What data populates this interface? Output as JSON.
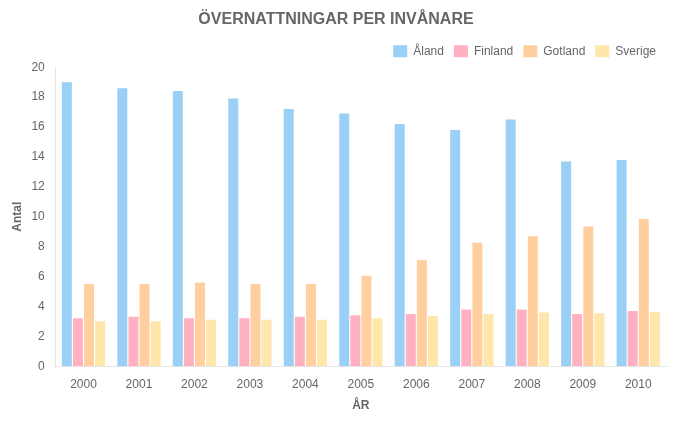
{
  "chart_data": {
    "type": "bar",
    "title": "ÖVERNATTNINGAR PER INVÅNARE",
    "xlabel": "ÅR",
    "ylabel": "Antal",
    "categories": [
      "2000",
      "2001",
      "2002",
      "2003",
      "2004",
      "2005",
      "2006",
      "2007",
      "2008",
      "2009",
      "2010"
    ],
    "series": [
      {
        "name": "Åland",
        "values": [
          19.0,
          18.6,
          18.4,
          17.9,
          17.2,
          16.9,
          16.2,
          15.8,
          16.5,
          13.7,
          13.8
        ]
      },
      {
        "name": "Finland",
        "values": [
          3.2,
          3.3,
          3.2,
          3.2,
          3.3,
          3.4,
          3.5,
          3.8,
          3.8,
          3.5,
          3.7
        ]
      },
      {
        "name": "Gotland",
        "values": [
          5.5,
          5.5,
          5.6,
          5.5,
          5.5,
          6.05,
          7.1,
          8.25,
          8.7,
          9.35,
          9.85
        ]
      },
      {
        "name": "Sverige",
        "values": [
          3.0,
          3.0,
          3.1,
          3.1,
          3.1,
          3.2,
          3.35,
          3.5,
          3.6,
          3.55,
          3.65
        ]
      }
    ],
    "ylim": [
      0,
      20
    ],
    "yticks": [
      0,
      2,
      4,
      6,
      8,
      10,
      12,
      14,
      16,
      18,
      20
    ],
    "grid": false,
    "legend": "upper right"
  }
}
